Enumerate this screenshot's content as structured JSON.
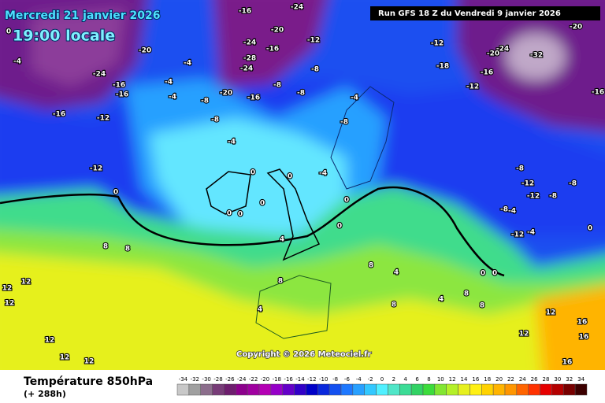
{
  "header": {
    "date": "Mercredi 21 janvier 2026",
    "time": "19:00 locale",
    "run": "Run GFS 18 Z du Vendredi 9 janvier 2026"
  },
  "footer": {
    "title": "Température 850hPa",
    "lead": "(+ 288h)",
    "copyright": "Copyright © 2026 Meteociel.fr"
  },
  "scale": {
    "values": [
      -34,
      -32,
      -30,
      -28,
      -26,
      -24,
      -22,
      -20,
      -18,
      -16,
      -14,
      -12,
      -10,
      -8,
      -6,
      -4,
      -2,
      0,
      2,
      4,
      6,
      8,
      10,
      12,
      14,
      16,
      18,
      20,
      22,
      24,
      26,
      28,
      30,
      32,
      34
    ],
    "colors": [
      "#c8c8c8",
      "#a0a0a0",
      "#8c6e8c",
      "#783c78",
      "#6e1e6e",
      "#8c008c",
      "#a000a0",
      "#b400b4",
      "#9600c8",
      "#6400c8",
      "#3200c8",
      "#0000c8",
      "#0a28dc",
      "#1450f0",
      "#1e78ff",
      "#28a0ff",
      "#32c8ff",
      "#50f0ff",
      "#50e6c8",
      "#3cdc96",
      "#32d264",
      "#3cdc3c",
      "#82e632",
      "#b4f028",
      "#e6f01e",
      "#fff014",
      "#ffd200",
      "#ffb400",
      "#ff9600",
      "#ff6400",
      "#ff3200",
      "#e60000",
      "#b40000",
      "#780000",
      "#3c0000"
    ]
  },
  "map_labels": [
    "-24",
    "-20",
    "-16",
    "-16",
    "-16",
    "-12",
    "-12",
    "-4",
    "0",
    "-16",
    "-24",
    "-20",
    "-24",
    "-28",
    "-16",
    "-24",
    "-12",
    "-8",
    "-8",
    "-8",
    "-16",
    "-20",
    "-8",
    "-8",
    "-4",
    "-4",
    "-4",
    "-4",
    "-12",
    "-18",
    "-12",
    "-16",
    "-20",
    "-24",
    "-32",
    "-20",
    "-16",
    "-8",
    "-12",
    "-12",
    "-8",
    "-8",
    "-4",
    "-8",
    "-12",
    "-4",
    "0",
    "0",
    "0",
    "0",
    "0",
    "0",
    "0",
    "0",
    "0",
    "-4",
    "-8",
    "-4",
    "4",
    "8",
    "8",
    "12",
    "12",
    "12",
    "8",
    "8",
    "4",
    "4",
    "8",
    "8",
    "4",
    "8",
    "12",
    "12",
    "16",
    "16",
    "12",
    "16",
    "12",
    "12",
    "0",
    "0"
  ]
}
